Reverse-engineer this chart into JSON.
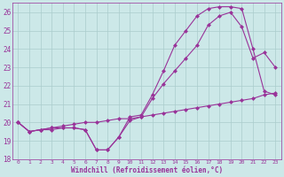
{
  "xlabel": "Windchill (Refroidissement éolien,°C)",
  "background_color": "#cce8e8",
  "grid_color": "#aacccc",
  "line_color": "#993399",
  "xlim": [
    -0.5,
    23.5
  ],
  "ylim": [
    18,
    26.5
  ],
  "yticks": [
    18,
    19,
    20,
    21,
    22,
    23,
    24,
    25,
    26
  ],
  "xticks": [
    0,
    1,
    2,
    3,
    4,
    5,
    6,
    7,
    8,
    9,
    10,
    11,
    12,
    13,
    14,
    15,
    16,
    17,
    18,
    19,
    20,
    21,
    22,
    23
  ],
  "line1_x": [
    0,
    1,
    2,
    3,
    4,
    5,
    6,
    7,
    8,
    9,
    10,
    11,
    12,
    13,
    14,
    15,
    16,
    17,
    18,
    19,
    20,
    21,
    22,
    23
  ],
  "line1_y": [
    20.0,
    19.5,
    19.6,
    19.6,
    19.7,
    19.7,
    19.6,
    18.5,
    18.5,
    19.2,
    20.1,
    20.3,
    21.3,
    22.1,
    22.8,
    23.5,
    24.2,
    25.3,
    25.8,
    26.0,
    25.2,
    23.5,
    23.8,
    23.0
  ],
  "line2_x": [
    0,
    1,
    2,
    3,
    4,
    5,
    6,
    7,
    8,
    9,
    10,
    11,
    12,
    13,
    14,
    15,
    16,
    17,
    18,
    19,
    20,
    21,
    22,
    23
  ],
  "line2_y": [
    20.0,
    19.5,
    19.6,
    19.7,
    19.7,
    19.7,
    19.6,
    18.5,
    18.5,
    19.2,
    20.3,
    20.4,
    21.5,
    22.8,
    24.2,
    25.0,
    25.8,
    26.2,
    26.3,
    26.3,
    26.2,
    24.0,
    21.7,
    21.5
  ],
  "line3_x": [
    0,
    1,
    2,
    3,
    4,
    5,
    6,
    7,
    8,
    9,
    10,
    11,
    12,
    13,
    14,
    15,
    16,
    17,
    18,
    19,
    20,
    21,
    22,
    23
  ],
  "line3_y": [
    20.0,
    19.5,
    19.6,
    19.7,
    19.8,
    19.9,
    20.0,
    20.0,
    20.1,
    20.2,
    20.2,
    20.3,
    20.4,
    20.5,
    20.6,
    20.7,
    20.8,
    20.9,
    21.0,
    21.1,
    21.2,
    21.3,
    21.5,
    21.6
  ]
}
